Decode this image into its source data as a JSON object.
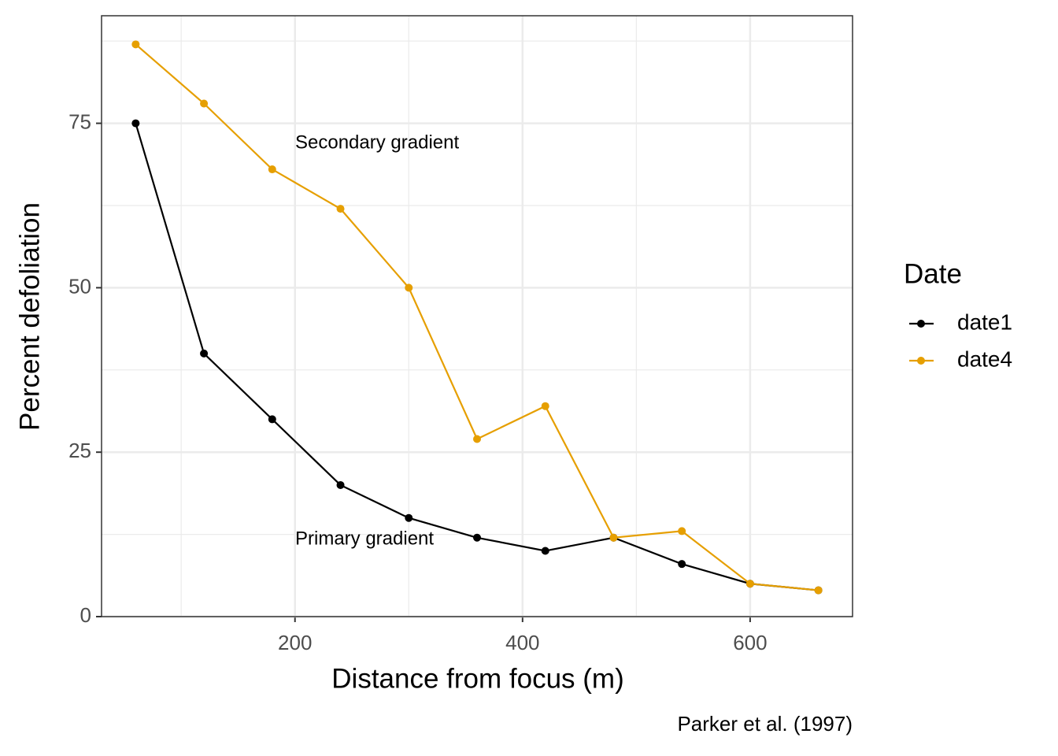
{
  "chart_data": {
    "type": "line",
    "x_label": "Distance from focus (m)",
    "y_label": "Percent defoliation",
    "x": [
      60,
      120,
      180,
      240,
      300,
      360,
      420,
      480,
      540,
      600,
      660
    ],
    "series": [
      {
        "name": "date1",
        "color": "#000000",
        "values": [
          75,
          40,
          30,
          20,
          15,
          12,
          10,
          12,
          8,
          5,
          4
        ]
      },
      {
        "name": "date4",
        "color": "#E69F00",
        "values": [
          87,
          78,
          68,
          62,
          50,
          27,
          32,
          12,
          13,
          5,
          4
        ]
      }
    ],
    "xlim": [
      30,
      690
    ],
    "xticks": [
      200,
      400,
      600
    ],
    "x_minor_ticks": [
      100,
      300,
      500
    ],
    "ylim": [
      0,
      91.35
    ],
    "yticks": [
      0,
      25,
      50,
      75
    ],
    "y_minor_ticks": [
      12.5,
      37.5,
      62.5,
      87.5
    ],
    "grid": true,
    "legend_title": "Date",
    "legend_position": "right",
    "annotations": [
      "Secondary gradient",
      "Primary gradient"
    ],
    "caption": "Parker et al. (1997)"
  }
}
